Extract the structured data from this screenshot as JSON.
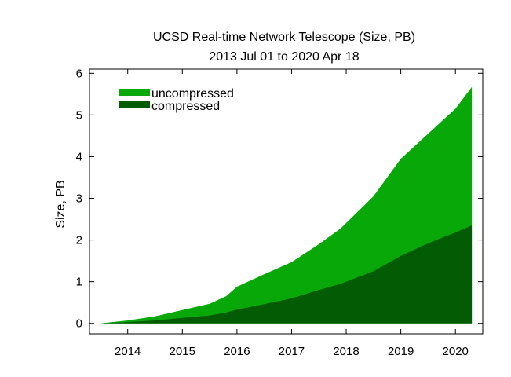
{
  "chart_data": {
    "type": "area",
    "title": "UCSD Real-time Network Telescope (Size, PB)",
    "subtitle": "2013 Jul 01 to 2020 Apr 18",
    "xlabel": "",
    "ylabel": "Size, PB",
    "xlim": [
      2013.3,
      2020.5
    ],
    "ylim": [
      -0.25,
      6.1
    ],
    "x_ticks": [
      2014,
      2015,
      2016,
      2017,
      2018,
      2019,
      2020
    ],
    "x_tick_labels": [
      "2014",
      "2015",
      "2016",
      "2017",
      "2018",
      "2019",
      "2020"
    ],
    "y_ticks": [
      0,
      1,
      2,
      3,
      4,
      5,
      6
    ],
    "y_tick_labels": [
      "0",
      "1",
      "2",
      "3",
      "4",
      "5",
      "6"
    ],
    "grid": false,
    "legend": "top-left",
    "x": [
      2013.5,
      2014.0,
      2014.5,
      2015.0,
      2015.5,
      2015.8,
      2016.0,
      2016.5,
      2017.0,
      2017.5,
      2017.9,
      2018.5,
      2019.0,
      2019.5,
      2020.0,
      2020.3
    ],
    "series": [
      {
        "name": "uncompressed",
        "color": "#08a808",
        "values": [
          0.0,
          0.07,
          0.17,
          0.32,
          0.47,
          0.65,
          0.88,
          1.18,
          1.47,
          1.9,
          2.28,
          3.05,
          3.95,
          4.55,
          5.15,
          5.67
        ]
      },
      {
        "name": "compressed",
        "color": "#035c03",
        "values": [
          0.0,
          0.03,
          0.07,
          0.13,
          0.19,
          0.26,
          0.33,
          0.46,
          0.6,
          0.8,
          0.95,
          1.25,
          1.62,
          1.92,
          2.18,
          2.35
        ]
      }
    ]
  }
}
